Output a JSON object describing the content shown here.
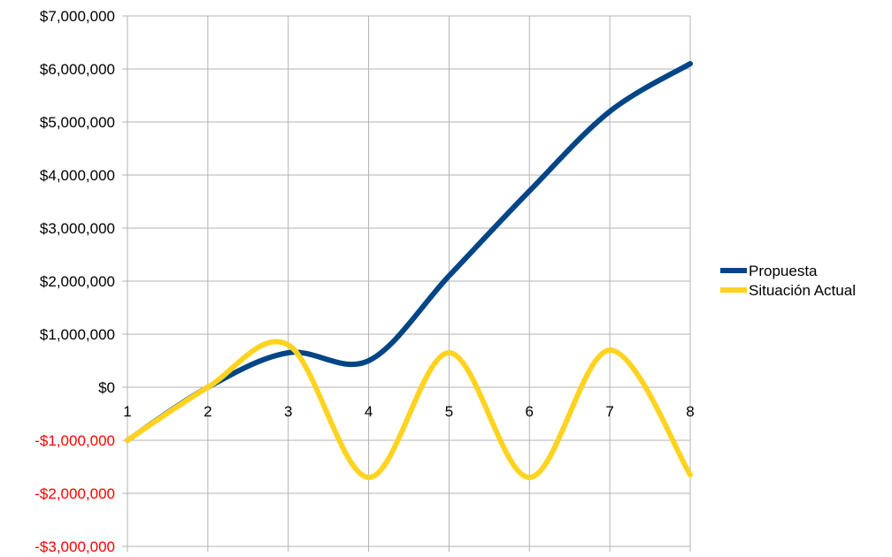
{
  "chart_data": {
    "type": "line",
    "x_categories": [
      "1",
      "2",
      "3",
      "4",
      "5",
      "6",
      "7",
      "8"
    ],
    "ylim": [
      -3000000,
      7000000
    ],
    "y_ticks": [
      {
        "value": 7000000,
        "label": "$7,000,000"
      },
      {
        "value": 6000000,
        "label": "$6,000,000"
      },
      {
        "value": 5000000,
        "label": "$5,000,000"
      },
      {
        "value": 4000000,
        "label": "$4,000,000"
      },
      {
        "value": 3000000,
        "label": "$3,000,000"
      },
      {
        "value": 2000000,
        "label": "$2,000,000"
      },
      {
        "value": 1000000,
        "label": "$1,000,000"
      },
      {
        "value": 0,
        "label": "$0"
      },
      {
        "value": -1000000,
        "label": "-$1,000,000"
      },
      {
        "value": -2000000,
        "label": "-$2,000,000"
      },
      {
        "value": -3000000,
        "label": "-$3,000,000"
      }
    ],
    "grid": true,
    "legend_position": "right",
    "series": [
      {
        "name": "Propuesta",
        "color": "#004586",
        "values": [
          -1000000,
          0,
          650000,
          500000,
          2100000,
          3700000,
          5200000,
          6100000
        ]
      },
      {
        "name": "Situación Actual",
        "color": "#ffd320",
        "values": [
          -1000000,
          0,
          800000,
          -1700000,
          650000,
          -1700000,
          700000,
          -1650000
        ]
      }
    ]
  },
  "colors": {
    "negative_tick": "#ff0000",
    "positive_tick": "#000000",
    "grid": "#b3b3b3"
  }
}
